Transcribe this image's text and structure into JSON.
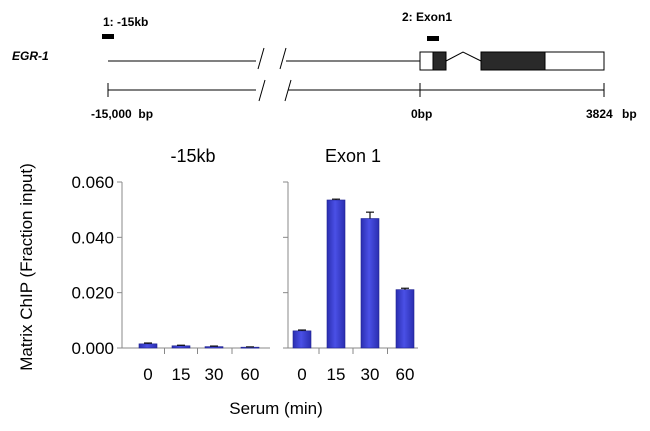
{
  "gene_map": {
    "gene_name": "EGR-1",
    "region_labels": [
      "1: -15kb",
      "2: Exon1"
    ],
    "coordinate_labels": [
      "-15,000  bp",
      "0bp",
      "3824",
      "bp"
    ]
  },
  "chart_data": [
    {
      "type": "bar",
      "title": "-15kb",
      "categories": [
        "0",
        "15",
        "30",
        "60"
      ],
      "values": [
        0.0015,
        0.0008,
        0.0005,
        0.0003
      ],
      "errors": [
        0.0003,
        0.0002,
        0.0002,
        0.0001
      ],
      "ylim": [
        0,
        0.06
      ],
      "yticks": [
        "0.000",
        "0.020",
        "0.040",
        "0.060"
      ],
      "ylabel": "Matrix ChIP (Fraction input)",
      "bar_color": "#3a3fd0"
    },
    {
      "type": "bar",
      "title": "Exon 1",
      "categories": [
        "0",
        "15",
        "30",
        "60"
      ],
      "values": [
        0.0062,
        0.0535,
        0.0468,
        0.0211
      ],
      "errors": [
        0.0003,
        0.0003,
        0.0023,
        0.0005
      ],
      "ylim": [
        0,
        0.06
      ],
      "bar_color": "#3a3fd0"
    }
  ],
  "xlabel": "Serum (min)"
}
